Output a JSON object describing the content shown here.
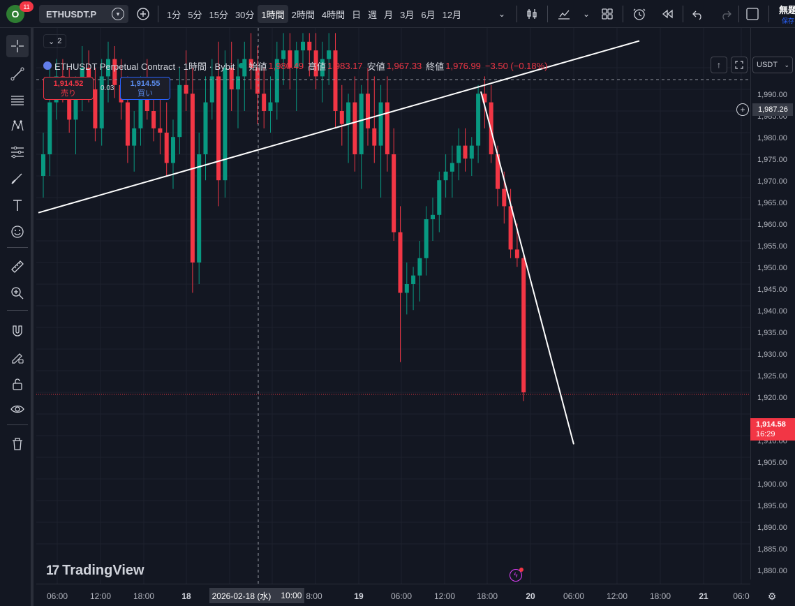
{
  "topbar": {
    "avatar_letter": "O",
    "notification_count": "11",
    "symbol": "ETHUSDT.P",
    "intervals": [
      "1分",
      "5分",
      "15分",
      "30分",
      "1時間",
      "2時間",
      "4時間",
      "日",
      "週",
      "月",
      "3月",
      "6月",
      "12月"
    ],
    "active_interval": "1時間",
    "layout_name": "無題",
    "save_status": "保存"
  },
  "legend": {
    "collapse_count": "2",
    "title": "ETHUSDT Perpetual Contract · 1時間 · Bybit",
    "open_label": "始値",
    "open": "1,980.49",
    "high_label": "高値",
    "high": "1,983.17",
    "low_label": "安値",
    "low": "1,967.33",
    "close_label": "終値",
    "close": "1,976.99",
    "change": "−3.50 (−0.18%)"
  },
  "trade": {
    "sell_price": "1,914.52",
    "sell_label": "売り",
    "spread": "0.03",
    "buy_price": "1,914.55",
    "buy_label": "買い"
  },
  "price_scale": {
    "currency": "USDT",
    "labels": [
      "1,990.00",
      "1,985.00",
      "1,980.00",
      "1,975.00",
      "1,970.00",
      "1,965.00",
      "1,960.00",
      "1,955.00",
      "1,950.00",
      "1,945.00",
      "1,940.00",
      "1,935.00",
      "1,930.00",
      "1,925.00",
      "1,920.00",
      "1,910.00",
      "1,905.00",
      "1,900.00",
      "1,895.00",
      "1,890.00",
      "1,885.00",
      "1,880.00"
    ],
    "crosshair_price": "1,987.26",
    "last_price": "1,914.58",
    "countdown": "16:29"
  },
  "time_axis": {
    "labels": [
      "06:00",
      "12:00",
      "18:00",
      "18",
      "8:00",
      "19",
      "06:00",
      "12:00",
      "18:00",
      "20",
      "06:00",
      "12:00",
      "18:00",
      "21",
      "06:0"
    ],
    "crosshair_date": "2026-02-18 (水)",
    "crosshair_time": "10:00"
  },
  "watermark": "TradingView",
  "colors": {
    "up": "#089981",
    "down": "#f23645",
    "background": "#131722",
    "grid": "#1e222d"
  },
  "chart_data": {
    "type": "candlestick",
    "symbol": "ETHUSDT",
    "exchange": "Bybit",
    "interval": "1時間",
    "ylim": [
      1878,
      1997
    ],
    "candles": [
      [
        1965,
        1975,
        1960,
        1970
      ],
      [
        1970,
        1990,
        1965,
        1982
      ],
      [
        1982,
        1992,
        1978,
        1988
      ],
      [
        1988,
        1992,
        1982,
        1985
      ],
      [
        1985,
        1990,
        1975,
        1978
      ],
      [
        1978,
        1988,
        1970,
        1984
      ],
      [
        1984,
        1995,
        1980,
        1990
      ],
      [
        1990,
        1994,
        1982,
        1985
      ],
      [
        1985,
        1990,
        1973,
        1976
      ],
      [
        1976,
        1992,
        1972,
        1988
      ],
      [
        1988,
        1996,
        1982,
        1992
      ],
      [
        1992,
        1995,
        1983,
        1986
      ],
      [
        1986,
        1992,
        1978,
        1982
      ],
      [
        1982,
        1988,
        1968,
        1972
      ],
      [
        1972,
        1980,
        1966,
        1976
      ],
      [
        1976,
        1988,
        1972,
        1984
      ],
      [
        1984,
        1992,
        1978,
        1980
      ],
      [
        1980,
        1986,
        1973,
        1976
      ],
      [
        1976,
        1984,
        1970,
        1975
      ],
      [
        1975,
        1982,
        1965,
        1968
      ],
      [
        1968,
        1978,
        1962,
        1974
      ],
      [
        1974,
        1990,
        1970,
        1986
      ],
      [
        1986,
        1994,
        1980,
        1984
      ],
      [
        1984,
        1990,
        1938,
        1945
      ],
      [
        1945,
        1975,
        1940,
        1970
      ],
      [
        1970,
        1988,
        1964,
        1982
      ],
      [
        1982,
        1992,
        1978,
        1988
      ],
      [
        1988,
        1996,
        1958,
        1964
      ],
      [
        1964,
        1994,
        1960,
        1990
      ],
      [
        1990,
        1996,
        1980,
        1985
      ],
      [
        1985,
        1992,
        1976,
        1988
      ],
      [
        1988,
        1996,
        1980,
        1992
      ],
      [
        1992,
        1998,
        1985,
        1990
      ],
      [
        1990,
        1995,
        1977,
        1984
      ],
      [
        1984,
        1990,
        1976,
        1980
      ],
      [
        1980,
        1988,
        1975,
        1982
      ],
      [
        1982,
        1996,
        1978,
        1992
      ],
      [
        1992,
        1998,
        1986,
        1994
      ],
      [
        1994,
        1998,
        1985,
        1990
      ],
      [
        1990,
        1996,
        1980,
        1994
      ],
      [
        1994,
        1998,
        1990,
        1996
      ],
      [
        1996,
        1998,
        1988,
        1994
      ],
      [
        1994,
        1998,
        1985,
        1988
      ],
      [
        1988,
        1996,
        1982,
        1992
      ],
      [
        1992,
        1998,
        1986,
        1994
      ],
      [
        1994,
        1998,
        1976,
        1980
      ],
      [
        1980,
        1986,
        1972,
        1977
      ],
      [
        1977,
        1984,
        1968,
        1982
      ],
      [
        1982,
        1988,
        1966,
        1970
      ],
      [
        1970,
        1986,
        1962,
        1984
      ],
      [
        1984,
        1990,
        1972,
        1976
      ],
      [
        1976,
        1988,
        1968,
        1972
      ],
      [
        1972,
        1986,
        1960,
        1982
      ],
      [
        1982,
        1988,
        1966,
        1970
      ],
      [
        1970,
        1976,
        1950,
        1952
      ],
      [
        1952,
        1958,
        1922,
        1938
      ],
      [
        1938,
        1945,
        1933,
        1940
      ],
      [
        1940,
        1944,
        1934,
        1942
      ],
      [
        1942,
        1950,
        1936,
        1946
      ],
      [
        1946,
        1958,
        1942,
        1955
      ],
      [
        1955,
        1960,
        1950,
        1956
      ],
      [
        1956,
        1966,
        1952,
        1964
      ],
      [
        1964,
        1970,
        1960,
        1966
      ],
      [
        1966,
        1972,
        1960,
        1968
      ],
      [
        1968,
        1976,
        1964,
        1972
      ],
      [
        1972,
        1976,
        1966,
        1969
      ],
      [
        1969,
        1974,
        1965,
        1972
      ],
      [
        1972,
        1986,
        1968,
        1984
      ],
      [
        1984,
        1988,
        1976,
        1982
      ],
      [
        1982,
        1986,
        1968,
        1970
      ],
      [
        1970,
        1972,
        1958,
        1962
      ],
      [
        1962,
        1966,
        1954,
        1958
      ],
      [
        1958,
        1962,
        1946,
        1948
      ],
      [
        1948,
        1954,
        1944,
        1946
      ],
      [
        1946,
        1947,
        1913,
        1915
      ]
    ],
    "trendlines": [
      {
        "from": [
          "17 12:00",
          1956.5
        ],
        "to": [
          "20 12:00",
          1994
        ]
      },
      {
        "from": [
          "19 17:00",
          1984.5
        ],
        "to": [
          "20 06:00",
          1903
        ]
      }
    ]
  }
}
